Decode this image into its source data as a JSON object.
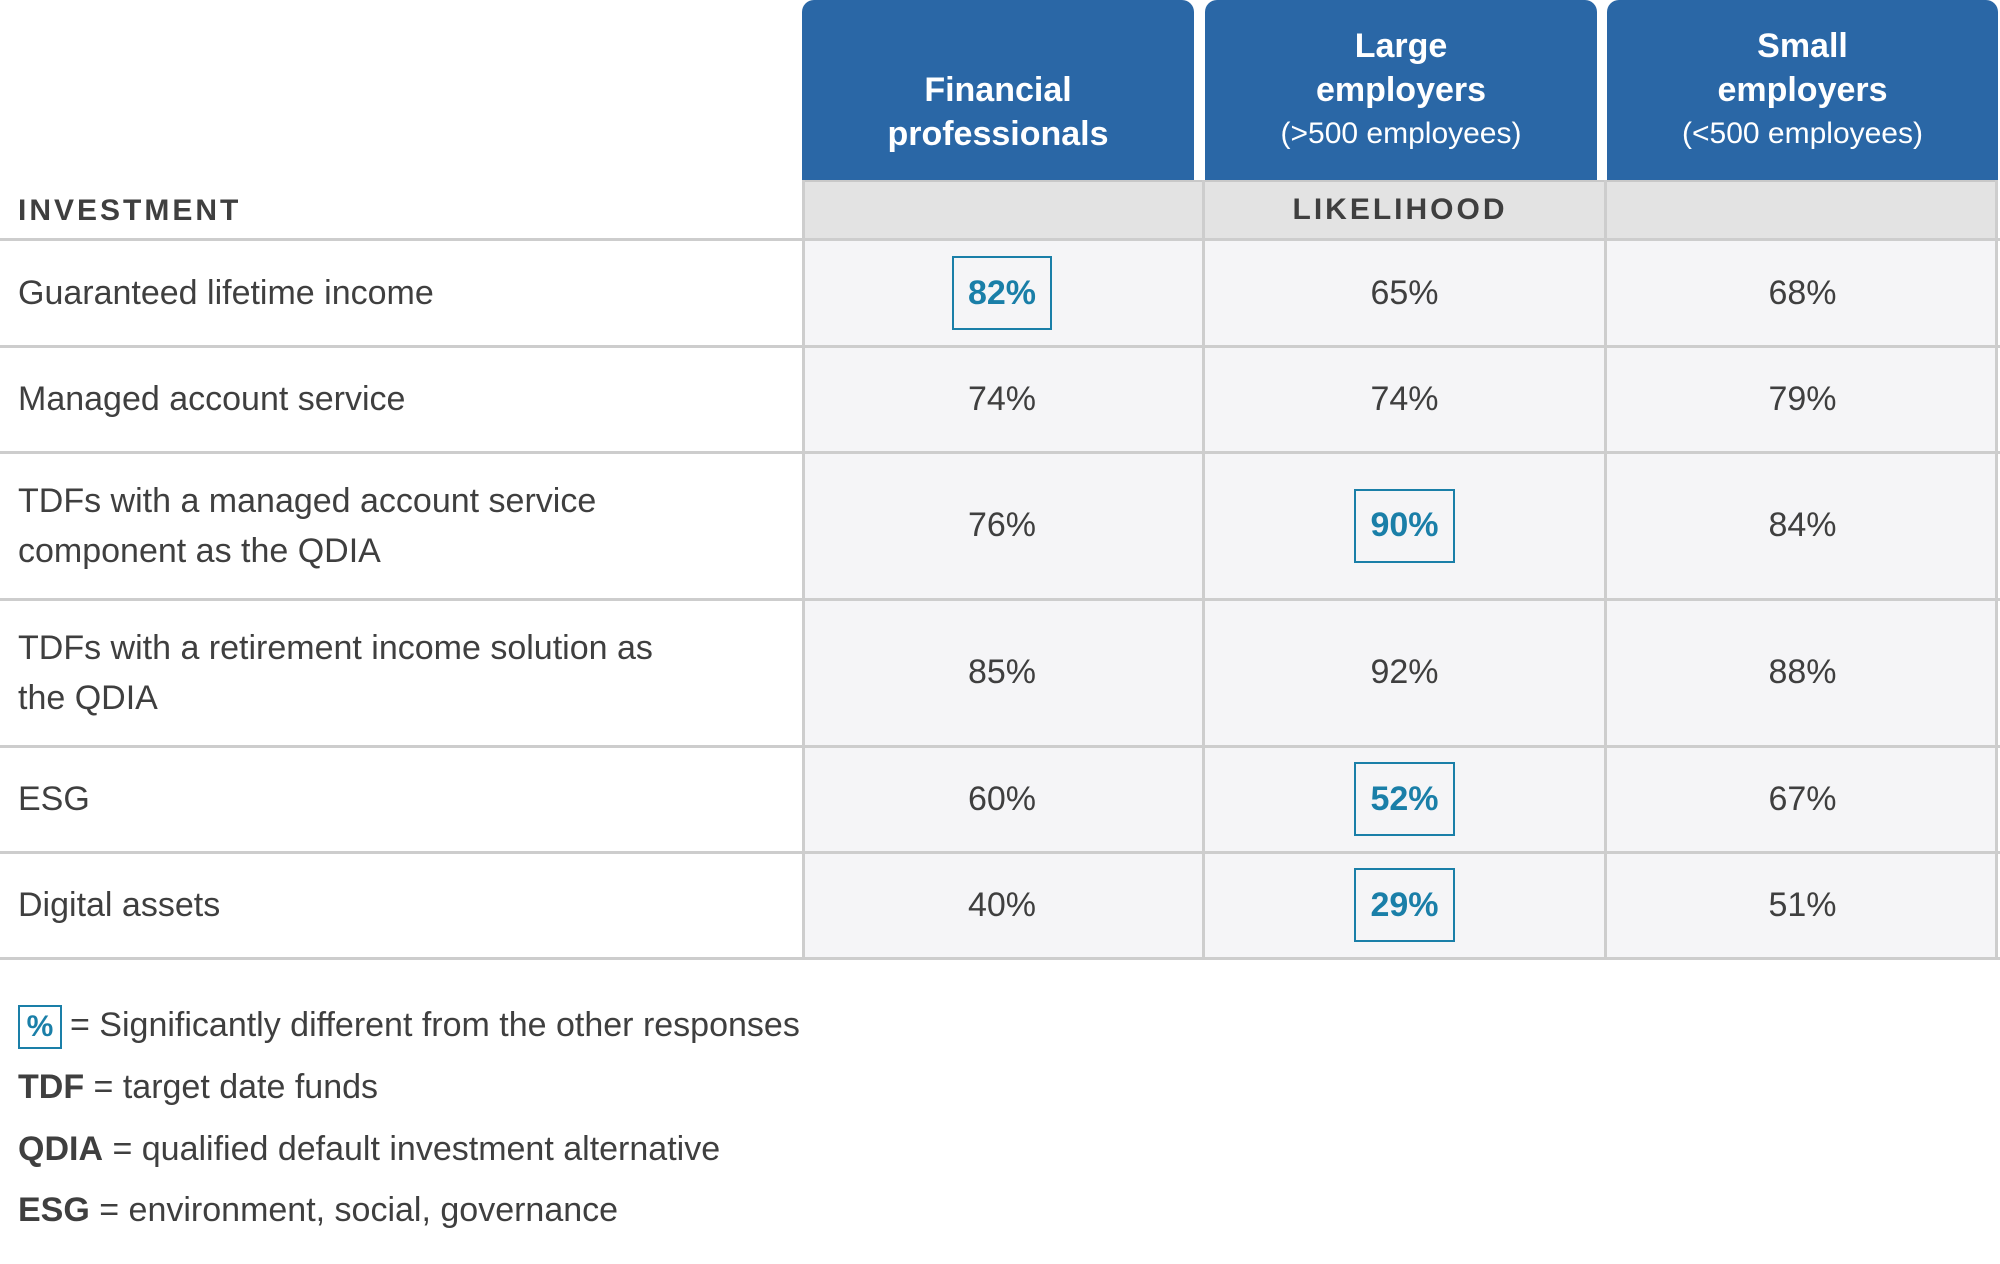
{
  "chart_data": {
    "type": "table",
    "row_header": "INVESTMENT",
    "group_header": "LIKELIHOOD",
    "columns": [
      {
        "line1": "",
        "line2": "Financial",
        "line3": "professionals",
        "subtitle_style": false
      },
      {
        "line1": "Large",
        "line2": "employers",
        "line3": "(>500 employees)"
      },
      {
        "line1": "Small",
        "line2": "employers",
        "line3": "(<500 employees)"
      }
    ],
    "rows": [
      {
        "label": "Guaranteed lifetime income",
        "values": [
          "82%",
          "65%",
          "68%"
        ],
        "significant": [
          true,
          false,
          false
        ]
      },
      {
        "label": "Managed account service",
        "values": [
          "74%",
          "74%",
          "79%"
        ],
        "significant": [
          false,
          false,
          false
        ]
      },
      {
        "label": "TDFs with a managed account service component as the QDIA",
        "values": [
          "76%",
          "90%",
          "84%"
        ],
        "significant": [
          false,
          true,
          false
        ]
      },
      {
        "label": "TDFs with a retirement income solution as the QDIA",
        "values": [
          "85%",
          "92%",
          "88%"
        ],
        "significant": [
          false,
          false,
          false
        ]
      },
      {
        "label": "ESG",
        "values": [
          "60%",
          "52%",
          "67%"
        ],
        "significant": [
          false,
          true,
          false
        ]
      },
      {
        "label": "Digital assets",
        "values": [
          "40%",
          "29%",
          "51%"
        ],
        "significant": [
          false,
          true,
          false
        ]
      }
    ]
  },
  "legend": {
    "sig_box": "%",
    "sig_text": "= Significantly different from the other responses",
    "tdf_term": "TDF",
    "tdf_text": " = target date funds",
    "qdia_term": "QDIA",
    "qdia_text": " = qualified default investment alternative",
    "esg_term": "ESG",
    "esg_text": " = environment, social, governance"
  },
  "colors": {
    "header_blue": "#2a67a6",
    "significant_teal": "#1a7fa8",
    "likelihood_bar": "#e3e3e3",
    "cell_bg": "#f5f5f7"
  }
}
